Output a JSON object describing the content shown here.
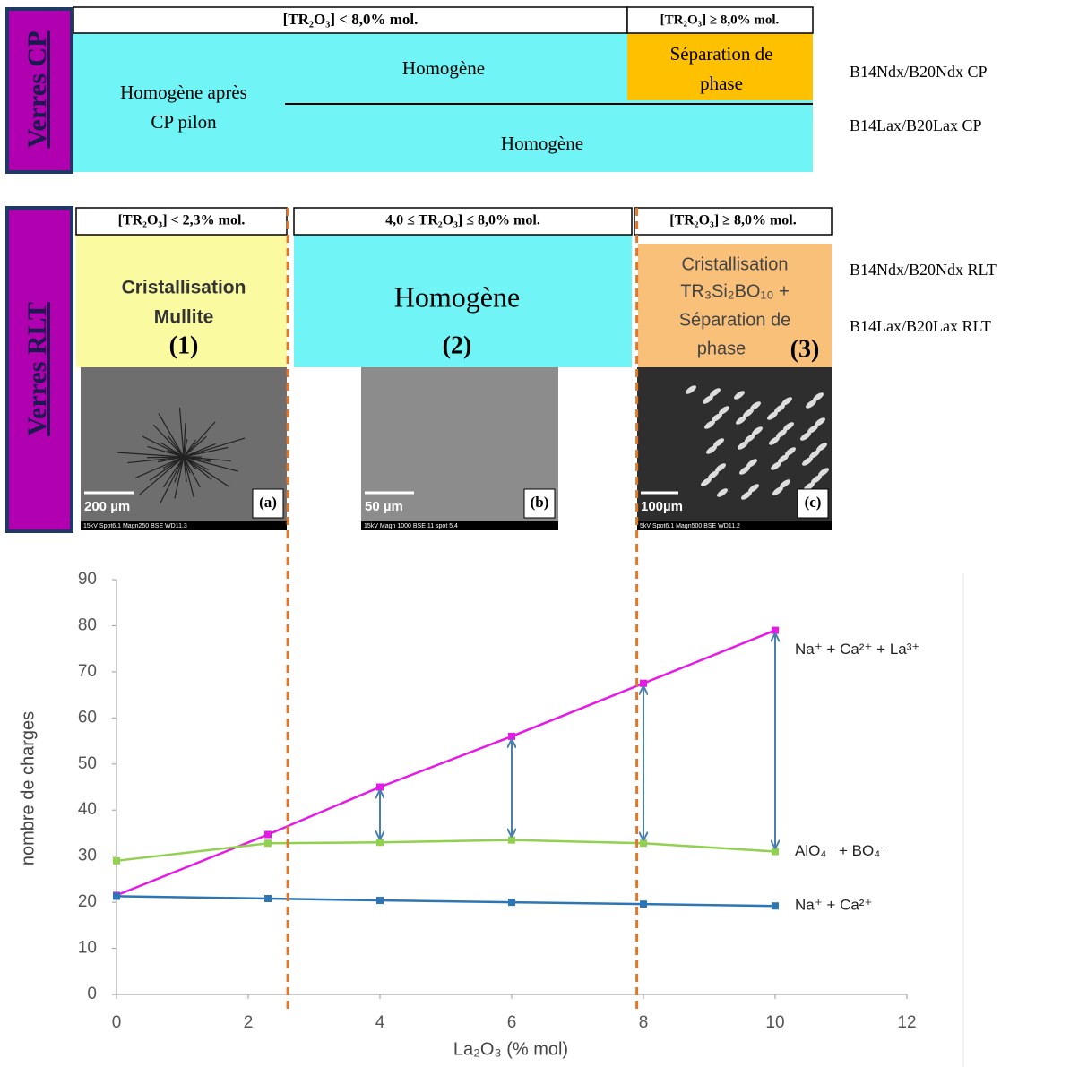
{
  "cp": {
    "label": "Verres CP",
    "header_left": "[TR₂O₃] < 8,0% mol.",
    "header_right": "[TR₂O₃] ≥ 8,0% mol.",
    "left": [
      "Homogène après",
      "CP pilon"
    ],
    "top_mid": "Homogène",
    "top_right": [
      "Séparation de",
      "phase"
    ],
    "bottom": "Homogène",
    "legend": [
      "B14Ndx/B20Ndx CP",
      "B14Lax/B20Lax CP"
    ]
  },
  "rlt": {
    "label": "Verres RLT",
    "headers": [
      "[TR₂O₃] < 2,3% mol.",
      "4,0 ≤ TR₂O₃] ≤ 8,0% mol.",
      "[TR₂O₃] ≥ 8,0% mol."
    ],
    "zone1": [
      "Cristallisation",
      "Mullite"
    ],
    "zone1_num": "(1)",
    "zone2": "Homogène",
    "zone2_num": "(2)",
    "zone3": [
      "Cristallisation",
      "TR₃Si₂BO₁₀ +",
      "Séparation de",
      "phase"
    ],
    "zone3_num": "(3)",
    "legend": [
      "B14Ndx/B20Ndx RLT",
      "B14Lax/B20Lax RLT"
    ],
    "images": [
      {
        "scale": "200 µm",
        "tag": "(a)",
        "footer": "15kV Spot6.1 Magn250 BSE WD11.3"
      },
      {
        "scale": "50 µm",
        "tag": "(b)",
        "footer": "15kV Magn 1000 BSE 11 spot 5.4"
      },
      {
        "scale": "100µm",
        "tag": "(c)",
        "footer": "5kV Spot6.1 Magn500 BSE WD11.2"
      }
    ]
  },
  "chart_data": {
    "type": "line",
    "x_label": "La₂O₃ (% mol)",
    "y_label": "nombre de charges",
    "x": [
      0,
      2.3,
      4,
      6,
      8,
      10
    ],
    "series": [
      {
        "name": "Na⁺ + Ca²⁺ + La³⁺",
        "color": "#e619e6",
        "values": [
          21.5,
          34.7,
          45,
          56,
          67.5,
          79
        ]
      },
      {
        "name": "AlO₄⁻ + BO₄⁻",
        "color": "#92d050",
        "values": [
          29,
          32.8,
          33,
          33.5,
          32.8,
          31
        ]
      },
      {
        "name": "Na⁺ + Ca²⁺",
        "color": "#2e75b6",
        "values": [
          21.3,
          20.8,
          20.4,
          20,
          19.6,
          19.2
        ]
      }
    ],
    "xlim": [
      0,
      12
    ],
    "xticks": [
      0,
      2,
      4,
      6,
      8,
      10,
      12
    ],
    "ylim": [
      0,
      90
    ],
    "yticks": [
      0,
      10,
      20,
      30,
      40,
      50,
      60,
      70,
      80,
      90
    ],
    "reference_lines": {
      "x": [
        2.6,
        7.9
      ],
      "color": "#e0772a"
    }
  }
}
